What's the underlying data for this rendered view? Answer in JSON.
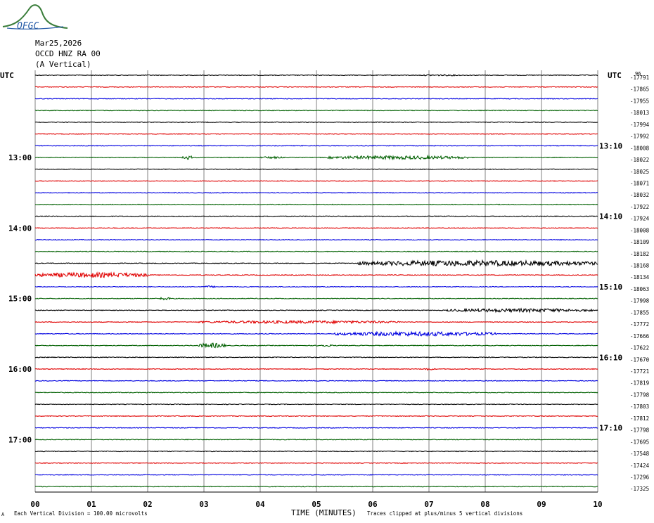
{
  "header": {
    "logo_text": "OFGC",
    "date": "Mar25,2026",
    "station": "OCCD HNZ RA 00",
    "component": "(A Vertical)"
  },
  "colors": {
    "trace_cycle": [
      "#000000",
      "#e00000",
      "#0000e0",
      "#006000"
    ],
    "grid": "#808080",
    "logo": "#3a7d3a"
  },
  "chart_data": {
    "type": "line",
    "title": "",
    "left_label": "UTC",
    "right_label": "UTC",
    "right_top_annotation": "96",
    "xlabel": "TIME (MINUTES)",
    "xlim": [
      0,
      10
    ],
    "x_ticks": [
      "00",
      "01",
      "02",
      "03",
      "04",
      "05",
      "06",
      "07",
      "08",
      "09",
      "10"
    ],
    "left_hour_labels": [
      {
        "row": 7,
        "label": "13:00"
      },
      {
        "row": 13,
        "label": "14:00"
      },
      {
        "row": 19,
        "label": "15:00"
      },
      {
        "row": 25,
        "label": "16:00"
      },
      {
        "row": 31,
        "label": "17:00"
      }
    ],
    "right_time_labels": [
      {
        "row": 6,
        "label": "13:10"
      },
      {
        "row": 12,
        "label": "14:10"
      },
      {
        "row": 18,
        "label": "15:10"
      },
      {
        "row": 24,
        "label": "16:10"
      },
      {
        "row": 30,
        "label": "17:10"
      }
    ],
    "row_offsets": [
      "-17791",
      "-17865",
      "-17955",
      "-18013",
      "-17994",
      "-17992",
      "-18008",
      "-18022",
      "-18025",
      "-18071",
      "-18032",
      "-17922",
      "-17924",
      "-18008",
      "-18109",
      "-18182",
      "-18168",
      "-18134",
      "-18063",
      "-17998",
      "-17855",
      "-17772",
      "-17666",
      "-17622",
      "-17670",
      "-17721",
      "-17819",
      "-17798",
      "-17803",
      "-17812",
      "-17798",
      "-17695",
      "-17548",
      "-17424",
      "-17296",
      "-17325"
    ],
    "bursts": [
      {
        "row": 0,
        "x0": 6.8,
        "x1": 7.6,
        "amp": 2
      },
      {
        "row": 7,
        "x0": 2.6,
        "x1": 2.8,
        "amp": 6
      },
      {
        "row": 7,
        "x0": 4.0,
        "x1": 4.4,
        "amp": 3
      },
      {
        "row": 7,
        "x0": 5.2,
        "x1": 7.7,
        "amp": 5
      },
      {
        "row": 16,
        "x0": 5.7,
        "x1": 10.0,
        "amp": 8
      },
      {
        "row": 17,
        "x0": 0.0,
        "x1": 2.0,
        "amp": 7
      },
      {
        "row": 18,
        "x0": 3.0,
        "x1": 3.2,
        "amp": 3
      },
      {
        "row": 19,
        "x0": 2.2,
        "x1": 2.4,
        "amp": 4
      },
      {
        "row": 20,
        "x0": 7.3,
        "x1": 9.9,
        "amp": 5
      },
      {
        "row": 21,
        "x0": 2.9,
        "x1": 6.5,
        "amp": 4
      },
      {
        "row": 22,
        "x0": 5.3,
        "x1": 8.2,
        "amp": 6
      },
      {
        "row": 23,
        "x0": 2.9,
        "x1": 3.4,
        "amp": 7
      },
      {
        "row": 23,
        "x0": 5.0,
        "x1": 5.3,
        "amp": 3
      },
      {
        "row": 25,
        "x0": 6.9,
        "x1": 7.1,
        "amp": 3
      }
    ]
  },
  "footer": {
    "left_mark": "A",
    "division_note": "Each Vertical Division =  100.00 microvolts",
    "clip_note": "Traces clipped at plus/minus 5 vertical divisions"
  }
}
